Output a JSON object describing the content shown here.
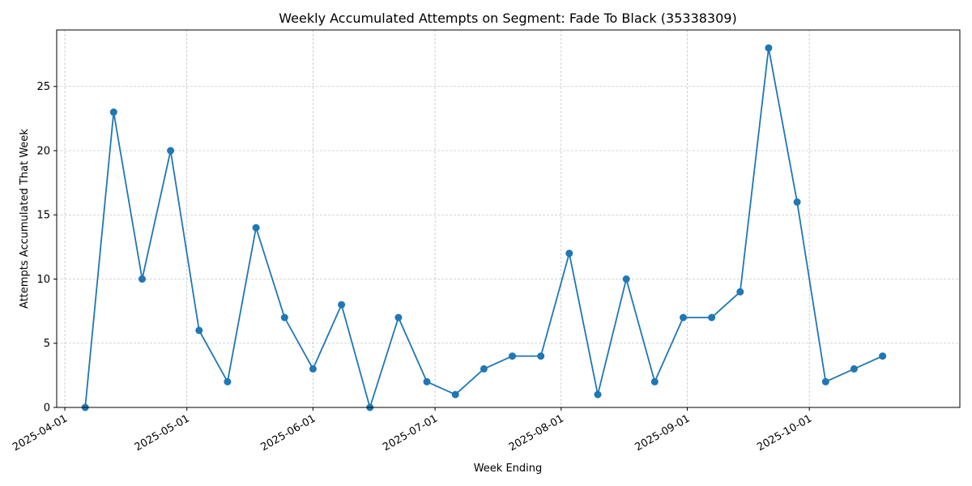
{
  "chart_data": {
    "type": "line",
    "title": "Weekly Accumulated Attempts on Segment: Fade To Black (35338309)",
    "xlabel": "Week Ending",
    "ylabel": "Attempts Accumulated That Week",
    "x_type": "date",
    "xlim": [
      "2025-03-30",
      "2025-11-07"
    ],
    "ylim": [
      0,
      29.4
    ],
    "x_ticks": [
      "2025-04-01",
      "2025-05-01",
      "2025-06-01",
      "2025-07-01",
      "2025-08-01",
      "2025-09-01",
      "2025-10-01"
    ],
    "y_ticks": [
      0,
      5,
      10,
      15,
      20,
      25
    ],
    "grid": true,
    "color": "#1f77b4",
    "series": [
      {
        "x": [
          "2025-04-06",
          "2025-04-13",
          "2025-04-20",
          "2025-04-27",
          "2025-05-04",
          "2025-05-11",
          "2025-05-18",
          "2025-05-25",
          "2025-06-01",
          "2025-06-08",
          "2025-06-15",
          "2025-06-22",
          "2025-06-29",
          "2025-07-06",
          "2025-07-13",
          "2025-07-20",
          "2025-07-27",
          "2025-08-03",
          "2025-08-10",
          "2025-08-17",
          "2025-08-24",
          "2025-08-31",
          "2025-09-07",
          "2025-09-14",
          "2025-09-21",
          "2025-09-28",
          "2025-10-05",
          "2025-10-12",
          "2025-10-19"
        ],
        "values": [
          0,
          23,
          10,
          20,
          6,
          2,
          14,
          7,
          3,
          8,
          0,
          7,
          2,
          1,
          3,
          4,
          4,
          12,
          1,
          10,
          2,
          7,
          7,
          9,
          28,
          16,
          2,
          3,
          4
        ]
      }
    ]
  }
}
